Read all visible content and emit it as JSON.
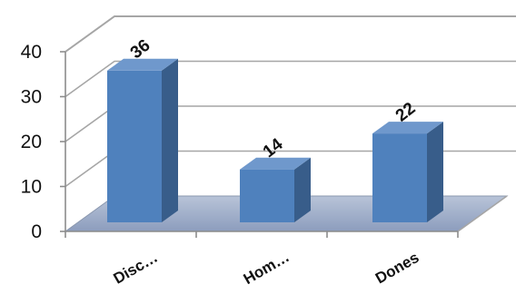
{
  "chart_data": {
    "type": "bar",
    "categories": [
      "Disc…",
      "Hom…",
      "Dones"
    ],
    "values": [
      36,
      14,
      22
    ],
    "data_labels": [
      "36",
      "14",
      "22"
    ],
    "ylim": [
      0,
      40
    ],
    "yticks": [
      "0",
      "10",
      "20",
      "30",
      "40"
    ],
    "title": "",
    "xlabel": "",
    "ylabel": "",
    "grid": true,
    "style": "3d",
    "colors": {
      "bar_front": "#4F81BD",
      "bar_top": "#6F98CC",
      "bar_side": "#385D8A",
      "floor": "#9EADC8",
      "gridline": "#A6A6A6"
    }
  }
}
